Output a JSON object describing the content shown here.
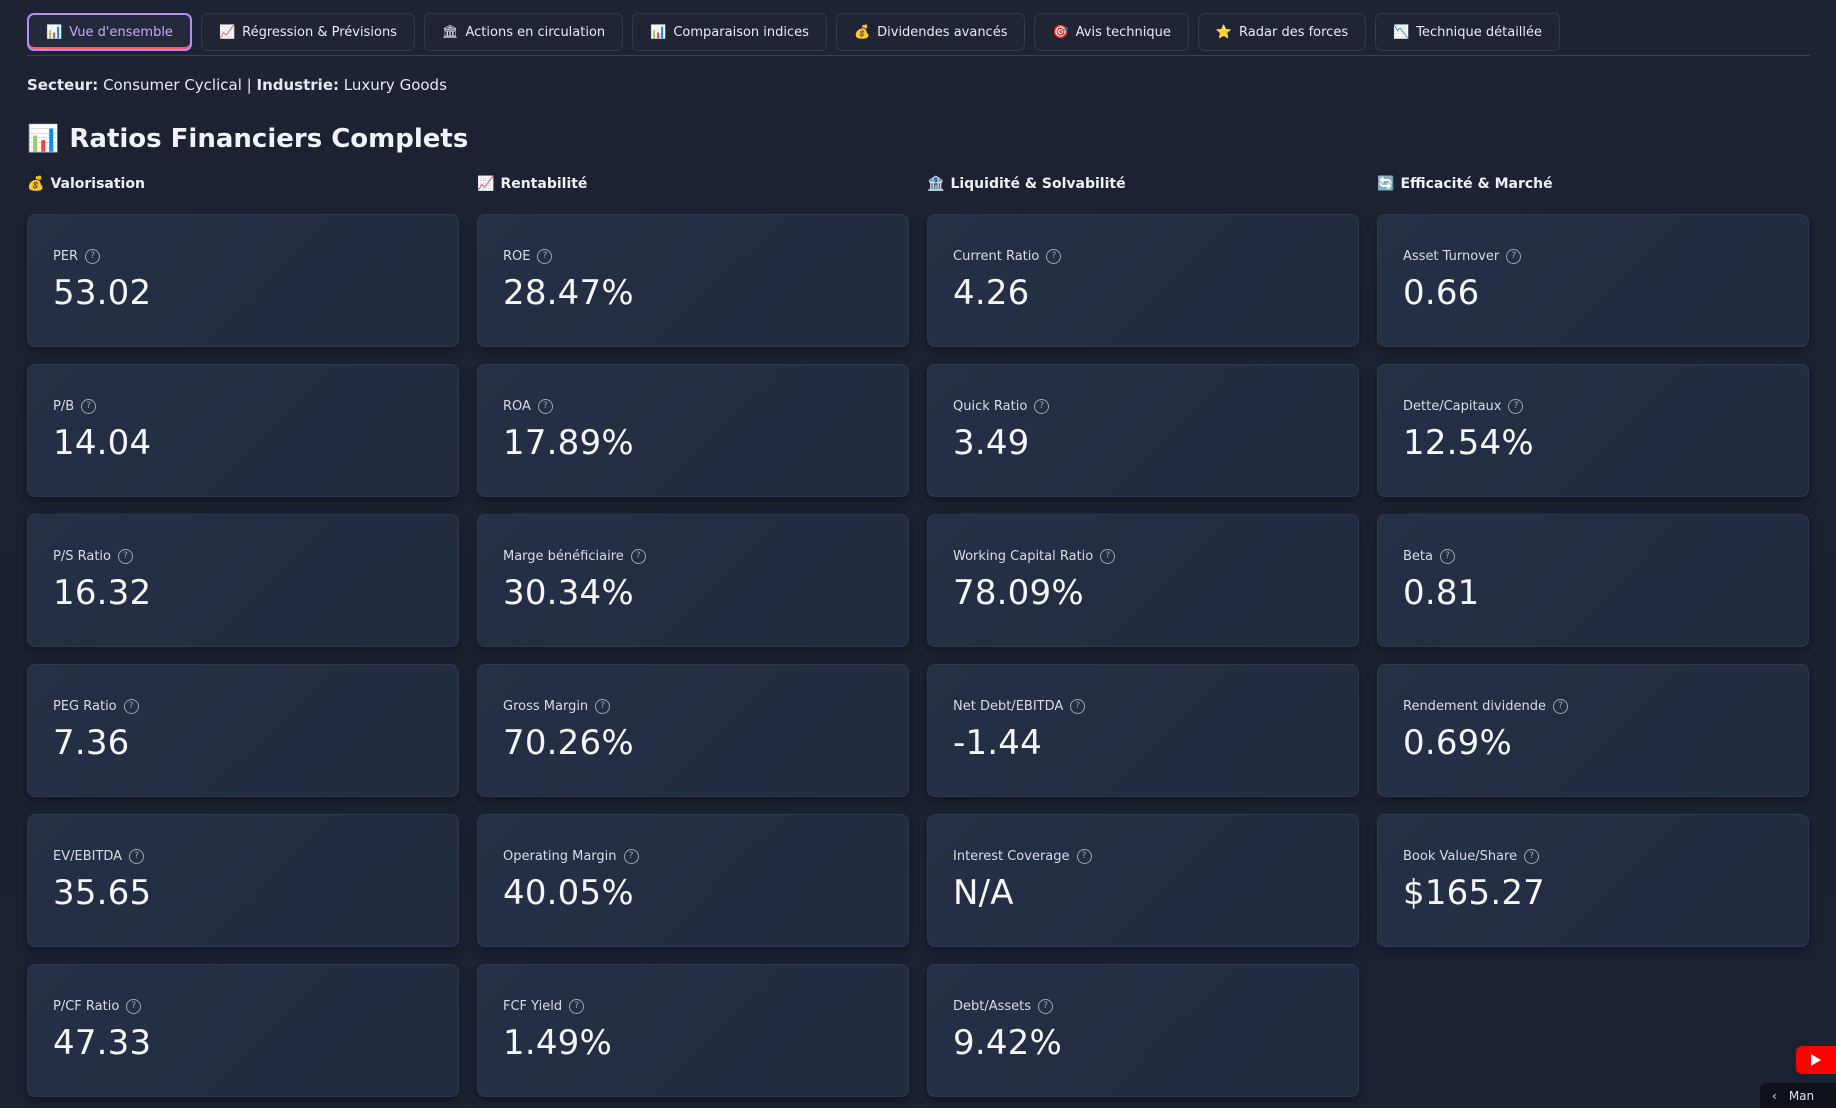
{
  "tabs": [
    {
      "icon": "📊",
      "label": "Vue d'ensemble"
    },
    {
      "icon": "📈",
      "label": "Régression & Prévisions"
    },
    {
      "icon": "🏛",
      "label": "Actions en circulation"
    },
    {
      "icon": "📊",
      "label": "Comparaison indices"
    },
    {
      "icon": "💰",
      "label": "Dividendes avancés"
    },
    {
      "icon": "🎯",
      "label": "Avis technique"
    },
    {
      "icon": "⭐",
      "label": "Radar des forces"
    },
    {
      "icon": "📉",
      "label": "Technique détaillée"
    }
  ],
  "sector": {
    "sector_label": "Secteur:",
    "sector_value": "Consumer Cyclical",
    "separator": "|",
    "industry_label": "Industrie:",
    "industry_value": "Luxury Goods"
  },
  "page_title": {
    "icon": "📊",
    "text": "Ratios Financiers Complets"
  },
  "columns": [
    {
      "icon": "💰",
      "title": "Valorisation",
      "cards": [
        {
          "label": "PER",
          "value": "53.02"
        },
        {
          "label": "P/B",
          "value": "14.04"
        },
        {
          "label": "P/S Ratio",
          "value": "16.32"
        },
        {
          "label": "PEG Ratio",
          "value": "7.36"
        },
        {
          "label": "EV/EBITDA",
          "value": "35.65"
        },
        {
          "label": "P/CF Ratio",
          "value": "47.33"
        }
      ]
    },
    {
      "icon": "📈",
      "title": "Rentabilité",
      "cards": [
        {
          "label": "ROE",
          "value": "28.47%"
        },
        {
          "label": "ROA",
          "value": "17.89%"
        },
        {
          "label": "Marge bénéficiaire",
          "value": "30.34%"
        },
        {
          "label": "Gross Margin",
          "value": "70.26%"
        },
        {
          "label": "Operating Margin",
          "value": "40.05%"
        },
        {
          "label": "FCF Yield",
          "value": "1.49%"
        }
      ]
    },
    {
      "icon": "🏦",
      "title": "Liquidité & Solvabilité",
      "cards": [
        {
          "label": "Current Ratio",
          "value": "4.26"
        },
        {
          "label": "Quick Ratio",
          "value": "3.49"
        },
        {
          "label": "Working Capital Ratio",
          "value": "78.09%"
        },
        {
          "label": "Net Debt/EBITDA",
          "value": "-1.44"
        },
        {
          "label": "Interest Coverage",
          "value": "N/A"
        },
        {
          "label": "Debt/Assets",
          "value": "9.42%"
        }
      ]
    },
    {
      "icon": "🔄",
      "title": "Efficacité & Marché",
      "cards": [
        {
          "label": "Asset Turnover",
          "value": "0.66"
        },
        {
          "label": "Dette/Capitaux",
          "value": "12.54%"
        },
        {
          "label": "Beta",
          "value": "0.81"
        },
        {
          "label": "Rendement dividende",
          "value": "0.69%"
        },
        {
          "label": "Book Value/Share",
          "value": "$165.27"
        }
      ]
    }
  ],
  "help_glyph": "?",
  "bottom_widget": {
    "arrow": "‹",
    "text": "Man"
  }
}
